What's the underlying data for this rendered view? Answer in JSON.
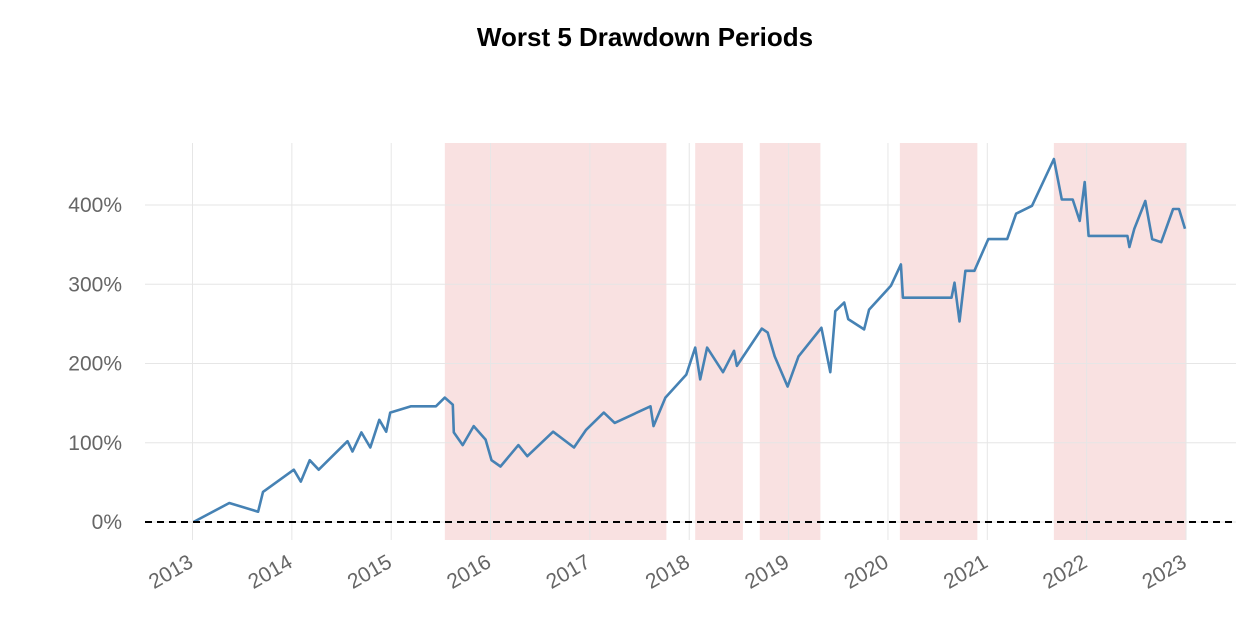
{
  "chart_data": {
    "type": "line",
    "title": "Worst 5 Drawdown Periods",
    "xlabel": "",
    "ylabel": "",
    "xlim": [
      2012.52,
      2023.5
    ],
    "ylim": [
      -23,
      480
    ],
    "grid": true,
    "x_ticks": [
      2013,
      2014,
      2015,
      2016,
      2017,
      2018,
      2019,
      2020,
      2021,
      2022,
      2023
    ],
    "x_tick_labels": [
      "2013",
      "2014",
      "2015",
      "2016",
      "2017",
      "2018",
      "2019",
      "2020",
      "2021",
      "2022",
      "2023"
    ],
    "y_ticks": [
      0,
      100,
      200,
      300,
      400
    ],
    "y_tick_labels": [
      "0%",
      "100%",
      "200%",
      "300%",
      "400%"
    ],
    "baseline": 0,
    "colors": {
      "line": "#4682b4",
      "drawdown_shade": "#f9e1e1",
      "baseline": "#000000",
      "grid": "#e6e6e6"
    },
    "drawdown_periods": [
      [
        2015.54,
        2017.77
      ],
      [
        2018.06,
        2018.54
      ],
      [
        2018.71,
        2019.32
      ],
      [
        2020.12,
        2020.9
      ],
      [
        2021.67,
        2023.0
      ]
    ],
    "series": [
      {
        "x": [
          2013.01,
          2013.37,
          2013.66,
          2013.71,
          2014.02,
          2014.09,
          2014.18,
          2014.27,
          2014.56,
          2014.61,
          2014.7,
          2014.79,
          2014.88,
          2014.95,
          2014.99,
          2015.2,
          2015.45,
          2015.54,
          2015.62,
          2015.63,
          2015.72,
          2015.83,
          2015.95,
          2016.01,
          2016.1,
          2016.28,
          2016.37,
          2016.63,
          2016.84,
          2016.96,
          2017.14,
          2017.25,
          2017.61,
          2017.64,
          2017.76,
          2017.97,
          2018.06,
          2018.11,
          2018.18,
          2018.34,
          2018.45,
          2018.48,
          2018.73,
          2018.79,
          2018.86,
          2018.99,
          2019.1,
          2019.33,
          2019.42,
          2019.47,
          2019.56,
          2019.6,
          2019.76,
          2019.81,
          2020.03,
          2020.13,
          2020.15,
          2020.64,
          2020.67,
          2020.72,
          2020.78,
          2020.87,
          2021.01,
          2021.2,
          2021.29,
          2021.45,
          2021.67,
          2021.75,
          2021.86,
          2021.93,
          2021.98,
          2022.02,
          2022.41,
          2022.43,
          2022.48,
          2022.59,
          2022.66,
          2022.75,
          2022.87,
          2022.93,
          2022.99
        ],
        "y": [
          0,
          24,
          13,
          38,
          66,
          51,
          78,
          66,
          102,
          89,
          113,
          94,
          129,
          114,
          138,
          146,
          146,
          157,
          148,
          113,
          97,
          121,
          104,
          78,
          70,
          97,
          83,
          114,
          94,
          116,
          138,
          125,
          146,
          121,
          157,
          186,
          220,
          180,
          220,
          189,
          216,
          197,
          244,
          239,
          209,
          171,
          209,
          245,
          189,
          266,
          277,
          256,
          243,
          268,
          298,
          325,
          283,
          283,
          302,
          253,
          317,
          317,
          357,
          357,
          389,
          399,
          458,
          407,
          407,
          380,
          429,
          361,
          361,
          347,
          370,
          405,
          357,
          353,
          395,
          395,
          370
        ]
      }
    ]
  }
}
